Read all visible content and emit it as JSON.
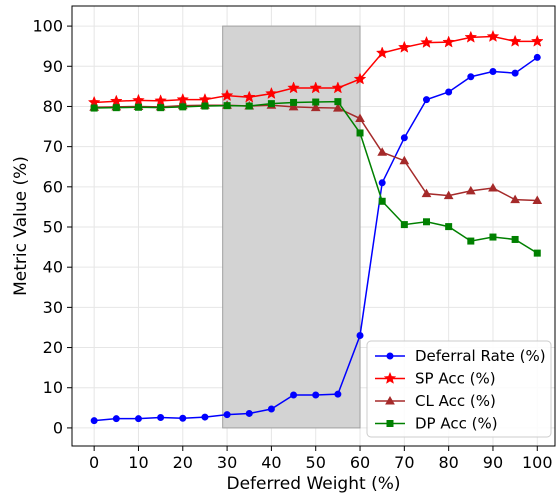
{
  "chart_data": {
    "type": "line",
    "xlabel": "Deferred Weight (%)",
    "ylabel": "Metric Value (%)",
    "xlim": [
      -5,
      104
    ],
    "ylim": [
      -4.5,
      105
    ],
    "xticks": [
      0,
      10,
      20,
      30,
      40,
      50,
      60,
      70,
      80,
      90,
      100
    ],
    "yticks": [
      0,
      10,
      20,
      30,
      40,
      50,
      60,
      70,
      80,
      90,
      100
    ],
    "grid": true,
    "legend_position": "lower-right",
    "shaded_region": {
      "x_start": 29,
      "x_end": 60,
      "color": "#d3d3d3"
    },
    "x": [
      0,
      5,
      10,
      15,
      20,
      25,
      30,
      35,
      40,
      45,
      50,
      55,
      60,
      65,
      70,
      75,
      80,
      85,
      90,
      95,
      100
    ],
    "series": [
      {
        "name": "Deferral Rate (%)",
        "color": "#0000ff",
        "marker": "circle",
        "values": [
          1.8,
          2.3,
          2.3,
          2.6,
          2.4,
          2.7,
          3.3,
          3.6,
          4.7,
          8.2,
          8.2,
          8.4,
          23.0,
          61.0,
          72.2,
          81.7,
          83.6,
          87.4,
          88.7,
          88.3,
          92.2
        ]
      },
      {
        "name": "SP Acc (%)",
        "color": "#ff0000",
        "marker": "star",
        "values": [
          81.0,
          81.3,
          81.5,
          81.4,
          81.7,
          81.7,
          82.7,
          82.3,
          83.2,
          84.6,
          84.6,
          84.6,
          86.8,
          93.3,
          94.7,
          95.9,
          96.0,
          97.2,
          97.4,
          96.2,
          96.2
        ]
      },
      {
        "name": "CL Acc (%)",
        "color": "#a52a2a",
        "marker": "triangle",
        "values": [
          79.8,
          79.9,
          80.0,
          79.9,
          80.2,
          80.3,
          80.3,
          80.1,
          80.3,
          79.9,
          79.7,
          79.6,
          77.0,
          68.6,
          66.5,
          58.3,
          57.8,
          59.0,
          59.7,
          56.8,
          56.6
        ]
      },
      {
        "name": "DP Acc (%)",
        "color": "#008000",
        "marker": "square",
        "values": [
          79.6,
          79.7,
          79.8,
          79.7,
          79.9,
          80.1,
          80.2,
          80.1,
          80.7,
          81.0,
          81.1,
          81.2,
          73.4,
          56.4,
          50.6,
          51.3,
          50.1,
          46.5,
          47.5,
          46.9,
          43.5
        ]
      }
    ]
  }
}
